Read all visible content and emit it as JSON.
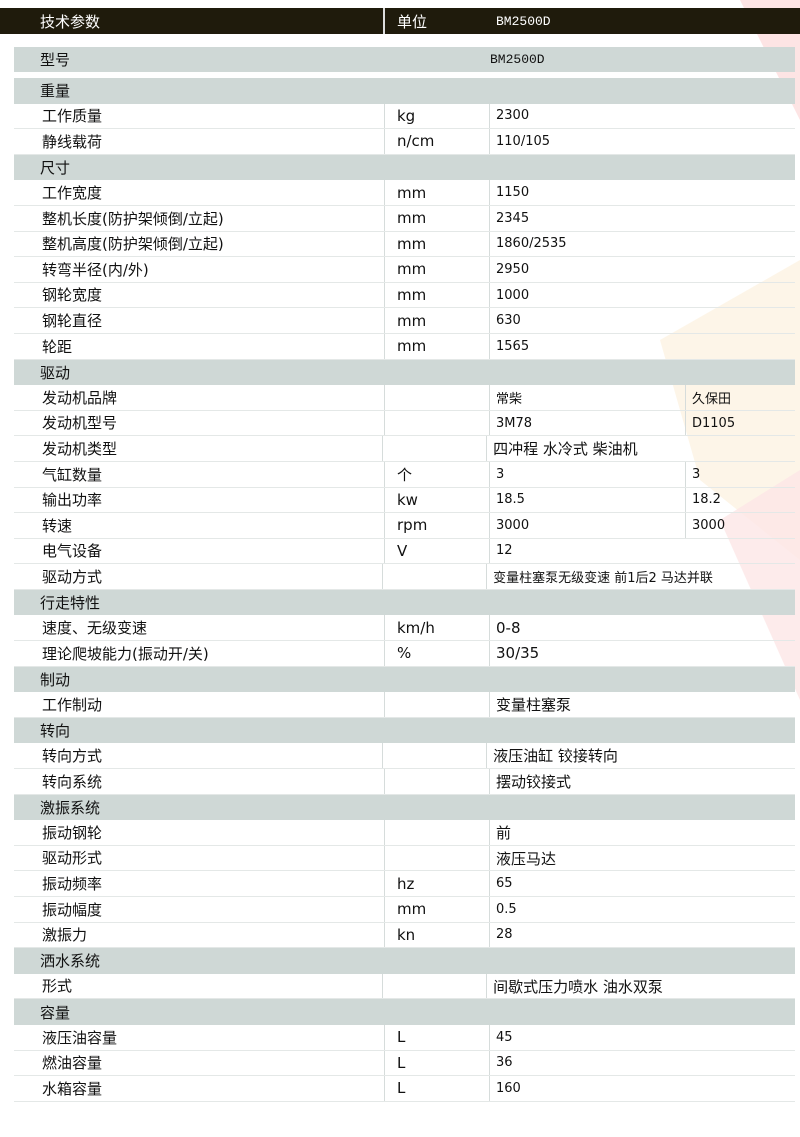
{
  "header": {
    "param": "技术参数",
    "unit": "单位",
    "model": "BM2500D"
  },
  "model_row": {
    "label": "型号",
    "value": "BM2500D"
  },
  "rows": [
    {
      "section": "重量"
    },
    {
      "label": "工作质量",
      "unit": "kg",
      "value": "2300"
    },
    {
      "label": "静线载荷",
      "unit": "n/cm",
      "value": "110/105"
    },
    {
      "section": "尺寸"
    },
    {
      "label": "工作宽度",
      "unit": "mm",
      "value": "1150"
    },
    {
      "label": "整机长度(防护架倾倒/立起)",
      "unit": "mm",
      "value": "2345"
    },
    {
      "label": "整机高度(防护架倾倒/立起)",
      "unit": "mm",
      "value": "1860/2535"
    },
    {
      "label": "转弯半径(内/外)",
      "unit": "mm",
      "value": "2950"
    },
    {
      "label": "钢轮宽度",
      "unit": "mm",
      "value": "1000"
    },
    {
      "label": "钢轮直径",
      "unit": "mm",
      "value": "630"
    },
    {
      "label": "轮距",
      "unit": "mm",
      "value": "1565"
    },
    {
      "section": "驱动"
    },
    {
      "label": "发动机品牌",
      "unit": "",
      "value": "常柴",
      "value2": "久保田"
    },
    {
      "label": "发动机型号",
      "unit": "",
      "value": "3M78",
      "value2": "D1105"
    },
    {
      "label": "发动机类型",
      "unit": "",
      "value": "四冲程 水冷式 柴油机",
      "wide": true,
      "big": true
    },
    {
      "label": "气缸数量",
      "unit": "个",
      "value": "3",
      "value2": "3"
    },
    {
      "label": "输出功率",
      "unit": "kw",
      "value": "18.5",
      "value2": "18.2"
    },
    {
      "label": "转速",
      "unit": "rpm",
      "value": "3000",
      "value2": "3000"
    },
    {
      "label": "电气设备",
      "unit": "V",
      "value": "12"
    },
    {
      "label": "驱动方式",
      "unit": "",
      "value": "变量柱塞泵无级变速  前1后2  马达并联",
      "wide": true
    },
    {
      "section": "行走特性"
    },
    {
      "label": "速度、无级变速",
      "unit": "km/h",
      "value": "0-8",
      "big": true
    },
    {
      "label": "理论爬坡能力(振动开/关)",
      "unit": "%",
      "value": "30/35",
      "big": true
    },
    {
      "section": "制动"
    },
    {
      "label": "工作制动",
      "unit": "",
      "value": "变量柱塞泵",
      "big": true
    },
    {
      "section": "转向"
    },
    {
      "label": "转向方式",
      "unit": "",
      "value": "液压油缸 铰接转向",
      "wide": true,
      "big": true
    },
    {
      "label": "转向系统",
      "unit": "",
      "value": "摆动铰接式",
      "big": true
    },
    {
      "section": "激振系统"
    },
    {
      "label": "振动钢轮",
      "unit": "",
      "value": "前",
      "big": true
    },
    {
      "label": "驱动形式",
      "unit": "",
      "value": "液压马达",
      "big": true
    },
    {
      "label": "振动频率",
      "unit": "hz",
      "value": "65"
    },
    {
      "label": "振动幅度",
      "unit": "mm",
      "value": "0.5"
    },
    {
      "label": "激振力",
      "unit": "kn",
      "value": "28"
    },
    {
      "section": "洒水系统"
    },
    {
      "label": "形式",
      "unit": "",
      "value": "间歇式压力喷水  油水双泵",
      "wide": true,
      "big": true
    },
    {
      "section": "容量"
    },
    {
      "label": "液压油容量",
      "unit": "L",
      "value": "45"
    },
    {
      "label": "燃油容量",
      "unit": "L",
      "value": "36"
    },
    {
      "label": "水箱容量",
      "unit": "L",
      "value": "160"
    }
  ]
}
